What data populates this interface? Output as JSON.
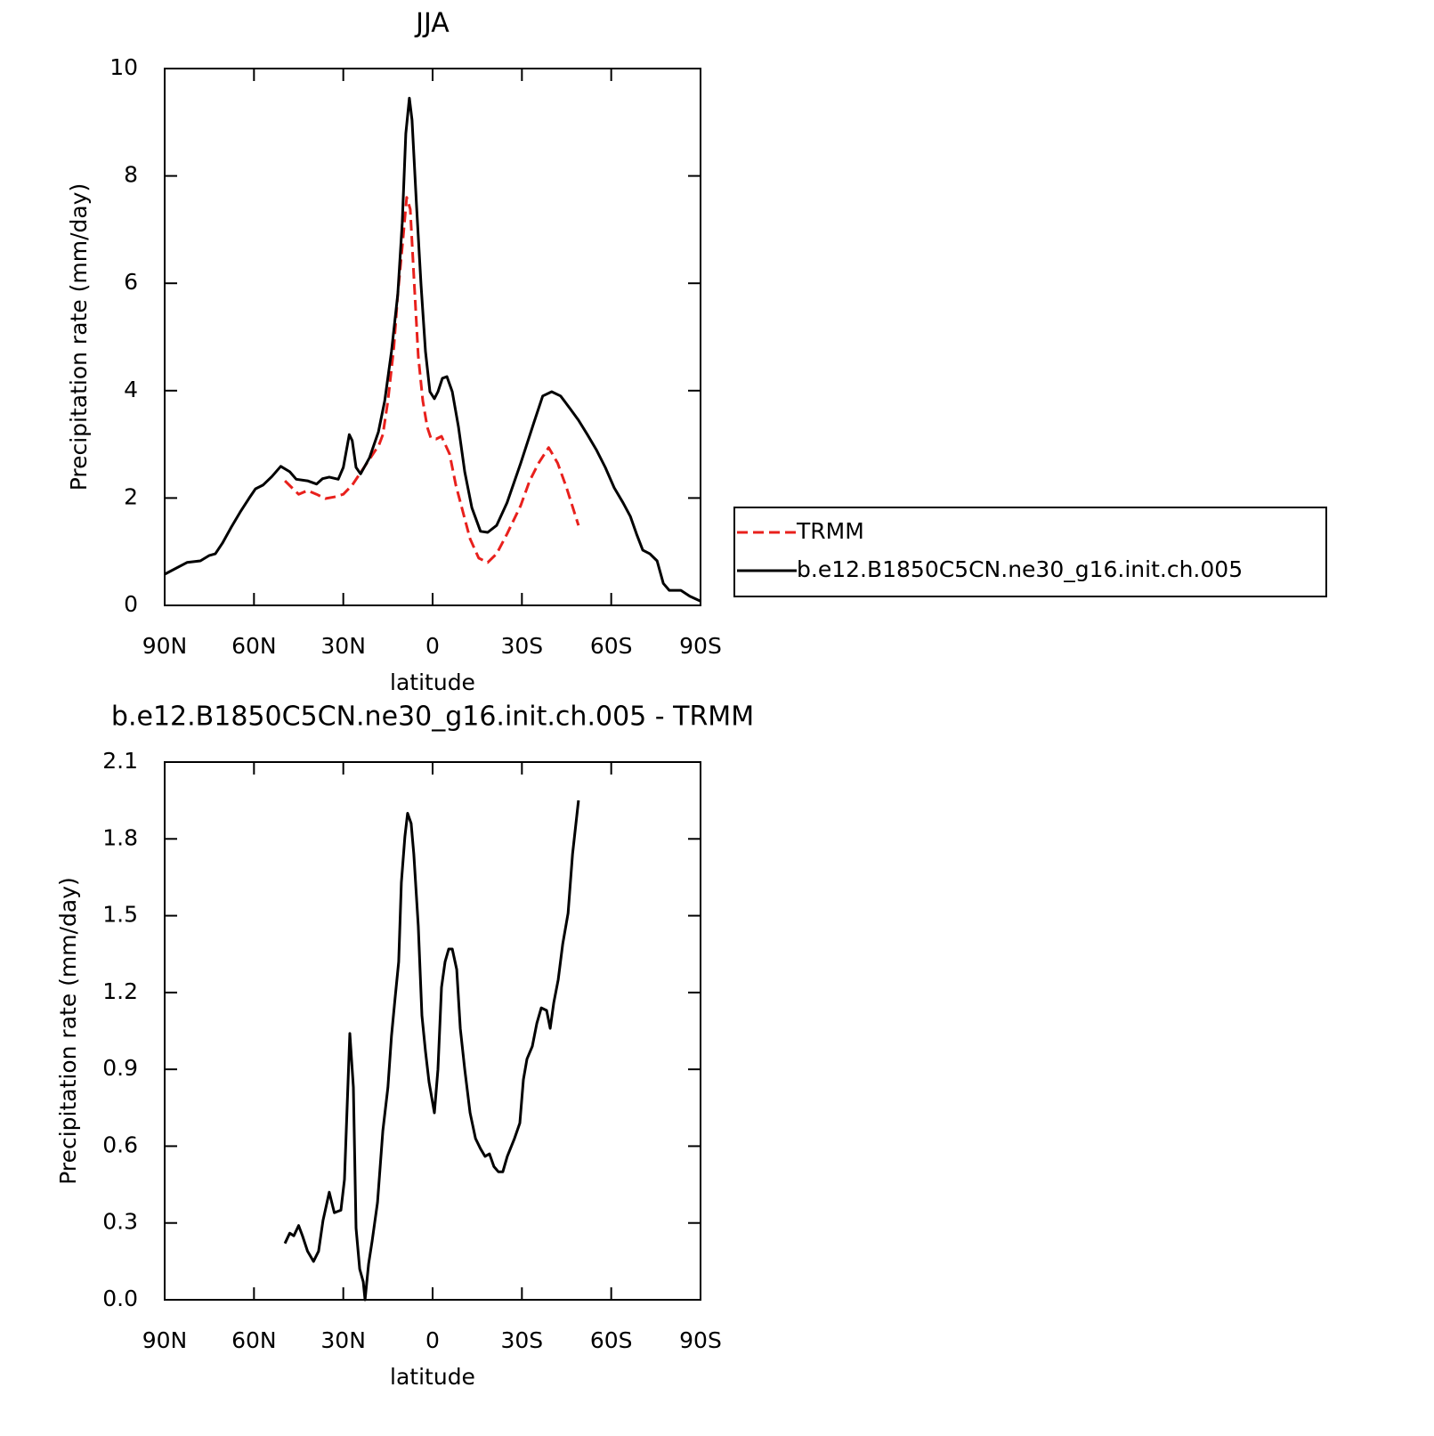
{
  "chart_data": [
    {
      "type": "line",
      "title": "JJA",
      "xlabel": "latitude",
      "ylabel": "Precipitation rate (mm/day)",
      "xlim": [
        90,
        -90
      ],
      "xticks": [
        {
          "value": 90,
          "label": "90N"
        },
        {
          "value": 60,
          "label": "60N"
        },
        {
          "value": 30,
          "label": "30N"
        },
        0,
        {
          "value": -30,
          "label": "30S"
        },
        {
          "value": -60,
          "label": "60S"
        },
        {
          "value": -90,
          "label": "90S"
        }
      ],
      "ylim": [
        0,
        10
      ],
      "yticks": [
        0,
        2,
        4,
        6,
        8,
        10
      ],
      "legend": "right",
      "series": [
        {
          "name": "TRMM",
          "color": "#e8201c",
          "line_style": "dashed",
          "x": [
            49.6,
            45,
            42,
            39,
            36,
            33,
            30,
            27,
            24,
            21,
            18,
            16.7,
            15,
            13,
            11.7,
            10,
            8.7,
            7.5,
            6.3,
            4.8,
            3.3,
            1.8,
            0.6,
            -1.2,
            -3,
            -5.7,
            -7.8,
            -10.2,
            -12.6,
            -15.5,
            -18.5,
            -21.5,
            -25,
            -29.6,
            -32.6,
            -35.6,
            -39,
            -42,
            -45,
            -49
          ],
          "values": [
            2.32,
            2.07,
            2.14,
            2.07,
            1.99,
            2.02,
            2.07,
            2.24,
            2.49,
            2.74,
            2.99,
            3.18,
            3.81,
            4.81,
            5.8,
            6.8,
            7.6,
            7.38,
            6.14,
            4.64,
            3.81,
            3.32,
            3.12,
            3.1,
            3.15,
            2.82,
            2.24,
            1.74,
            1.24,
            0.88,
            0.8,
            0.96,
            1.33,
            1.86,
            2.32,
            2.65,
            2.94,
            2.65,
            2.19,
            1.49
          ]
        },
        {
          "name": "b.e12.B1850C5CN.ne30_g16.init.ch.005",
          "color": "#000000",
          "line_style": "solid",
          "x": [
            90,
            82.5,
            78,
            75,
            73,
            70.6,
            67.6,
            64.6,
            61.6,
            59.5,
            57,
            54,
            51,
            48,
            45.8,
            42,
            39,
            37,
            34.7,
            31.7,
            30,
            28,
            27,
            25.7,
            24.2,
            21.2,
            18.2,
            16.1,
            13.8,
            11.7,
            10.2,
            9,
            7.8,
            6.9,
            5.4,
            3.9,
            2.4,
            0.9,
            -0.6,
            -1.8,
            -3.3,
            -4.8,
            -6.6,
            -8.7,
            -10.8,
            -13.2,
            -16.1,
            -18.5,
            -21.5,
            -25,
            -29.6,
            -34,
            -37,
            -40,
            -43,
            -46,
            -49,
            -52,
            -55,
            -58,
            -61,
            -64,
            -66.4,
            -68.5,
            -70.6,
            -73,
            -75.4,
            -77.5,
            -79.5,
            -83.4,
            -86.4,
            -90
          ],
          "values": [
            0.58,
            0.8,
            0.83,
            0.93,
            0.96,
            1.16,
            1.46,
            1.74,
            2.0,
            2.17,
            2.24,
            2.4,
            2.59,
            2.49,
            2.35,
            2.32,
            2.26,
            2.36,
            2.39,
            2.35,
            2.57,
            3.18,
            3.07,
            2.57,
            2.45,
            2.75,
            3.23,
            3.81,
            4.73,
            5.8,
            7.13,
            8.79,
            9.45,
            9.04,
            7.46,
            5.97,
            4.73,
            3.98,
            3.85,
            3.98,
            4.23,
            4.26,
            3.98,
            3.32,
            2.49,
            1.82,
            1.38,
            1.36,
            1.49,
            1.91,
            2.65,
            3.4,
            3.9,
            3.98,
            3.9,
            3.68,
            3.45,
            3.18,
            2.9,
            2.57,
            2.19,
            1.91,
            1.66,
            1.33,
            1.03,
            0.96,
            0.83,
            0.41,
            0.28,
            0.28,
            0.17,
            0.08
          ]
        }
      ]
    },
    {
      "type": "line",
      "title": "b.e12.B1850C5CN.ne30_g16.init.ch.005 - TRMM",
      "xlabel": "latitude",
      "ylabel": "Precipitation rate (mm/day)",
      "xlim": [
        90,
        -90
      ],
      "xticks": [
        {
          "value": 90,
          "label": "90N"
        },
        {
          "value": 60,
          "label": "60N"
        },
        {
          "value": 30,
          "label": "30N"
        },
        0,
        {
          "value": -30,
          "label": "30S"
        },
        {
          "value": -60,
          "label": "60S"
        },
        {
          "value": -90,
          "label": "90S"
        }
      ],
      "ylim": [
        0,
        2.1
      ],
      "yticks": [
        {
          "value": 0,
          "label": "0.0"
        },
        0.3,
        0.6,
        0.9,
        1.2,
        1.5,
        1.8,
        2.1
      ],
      "series": [
        {
          "color": "#000000",
          "line_style": "solid",
          "x": [
            49.6,
            48,
            46.6,
            45,
            43.7,
            42,
            40,
            38.3,
            36.8,
            34.7,
            33,
            30.8,
            29.6,
            27.8,
            26.6,
            25.7,
            24.5,
            23.3,
            22.7,
            21.5,
            20.3,
            18.5,
            16.7,
            15,
            13.8,
            12.6,
            11.4,
            10.5,
            9.3,
            8.4,
            7.2,
            6.3,
            4.8,
            3.6,
            2.4,
            1.2,
            -0.6,
            -1.8,
            -3,
            -4.2,
            -5.4,
            -6.6,
            -8.1,
            -9.3,
            -10.8,
            -12.6,
            -14.4,
            -16.1,
            -17.6,
            -19.1,
            -20.6,
            -22.1,
            -23.6,
            -25.1,
            -27.5,
            -29.3,
            -30.5,
            -31.7,
            -33.5,
            -35,
            -36.5,
            -38.3,
            -39.5,
            -40.7,
            -42.2,
            -43.7,
            -45.5,
            -47,
            -49
          ],
          "values": [
            0.22,
            0.26,
            0.25,
            0.29,
            0.25,
            0.19,
            0.15,
            0.19,
            0.31,
            0.42,
            0.34,
            0.35,
            0.47,
            1.04,
            0.83,
            0.28,
            0.12,
            0.07,
            0.0,
            0.14,
            0.23,
            0.38,
            0.66,
            0.83,
            1.03,
            1.18,
            1.32,
            1.63,
            1.81,
            1.9,
            1.86,
            1.74,
            1.46,
            1.11,
            0.97,
            0.85,
            0.73,
            0.9,
            1.22,
            1.32,
            1.37,
            1.37,
            1.29,
            1.06,
            0.9,
            0.73,
            0.63,
            0.59,
            0.56,
            0.57,
            0.52,
            0.5,
            0.5,
            0.56,
            0.63,
            0.69,
            0.86,
            0.94,
            0.99,
            1.08,
            1.14,
            1.13,
            1.06,
            1.16,
            1.25,
            1.39,
            1.51,
            1.74,
            1.95
          ]
        }
      ]
    }
  ]
}
